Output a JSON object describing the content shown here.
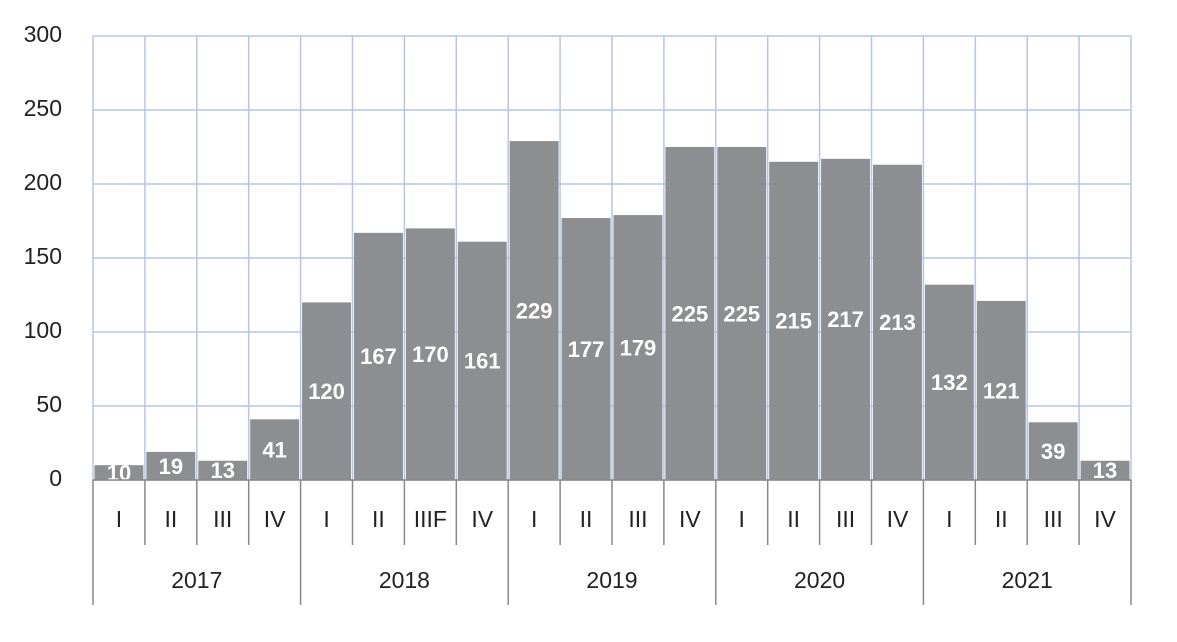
{
  "chart_data": {
    "type": "bar",
    "categories": [
      "I",
      "II",
      "III",
      "IV",
      "I",
      "II",
      "IIIF",
      "IV",
      "I",
      "II",
      "III",
      "IV",
      "I",
      "II",
      "III",
      "IV",
      "I",
      "II",
      "III",
      "IV"
    ],
    "groups": [
      "2017",
      "2018",
      "2019",
      "2020",
      "2021"
    ],
    "values": [
      10,
      19,
      13,
      41,
      120,
      167,
      170,
      161,
      229,
      177,
      179,
      225,
      225,
      215,
      217,
      213,
      132,
      121,
      39,
      13
    ],
    "color": "#8d8e91",
    "ylim": [
      0,
      300
    ],
    "yticks": [
      0,
      50,
      100,
      150,
      200,
      250,
      300
    ],
    "grid": true
  }
}
